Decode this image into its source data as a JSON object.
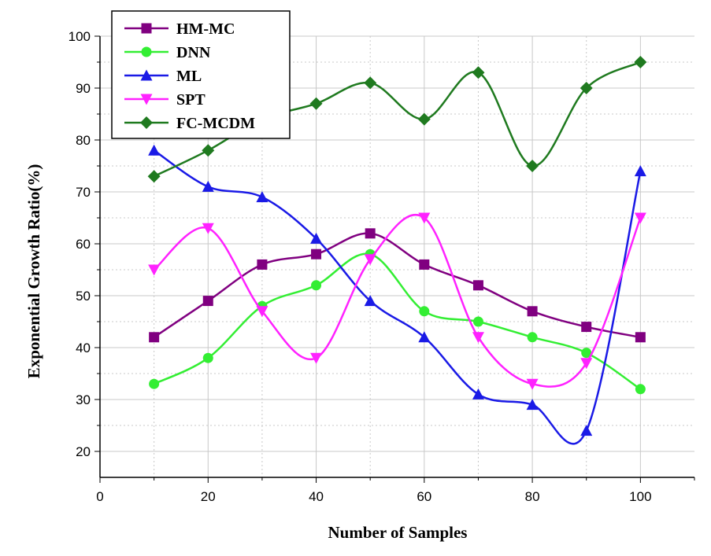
{
  "chart_data": {
    "type": "line",
    "title": "",
    "xlabel": "Number of Samples",
    "ylabel": "Exponential Growth Ratio(%)",
    "xlim": [
      0,
      110
    ],
    "ylim": [
      15,
      100
    ],
    "x_ticks": [
      0,
      20,
      40,
      60,
      80,
      100
    ],
    "y_ticks": [
      20,
      30,
      40,
      50,
      60,
      70,
      80,
      90,
      100
    ],
    "grid": true,
    "legend_position": "top-left",
    "x": [
      10,
      20,
      30,
      40,
      50,
      60,
      70,
      80,
      90,
      100
    ],
    "series": [
      {
        "name": "HM-MC",
        "color": "#800080",
        "marker": "square",
        "values": [
          42,
          49,
          56,
          58,
          62,
          56,
          52,
          47,
          44,
          42
        ]
      },
      {
        "name": "DNN",
        "color": "#33ee33",
        "marker": "circle",
        "values": [
          33,
          38,
          48,
          52,
          58,
          47,
          45,
          42,
          39,
          32
        ]
      },
      {
        "name": "ML",
        "color": "#1a1ae6",
        "marker": "triangle-up",
        "values": [
          78,
          71,
          69,
          61,
          49,
          42,
          31,
          29,
          24,
          74
        ]
      },
      {
        "name": "SPT",
        "color": "#ff22ff",
        "marker": "triangle-down",
        "values": [
          55,
          63,
          47,
          38,
          57,
          65,
          42,
          33,
          37,
          65
        ]
      },
      {
        "name": "FC-MCDM",
        "color": "#1f7a1f",
        "marker": "diamond",
        "values": [
          73,
          78,
          84,
          87,
          91,
          84,
          93,
          75,
          90,
          95
        ]
      }
    ]
  }
}
